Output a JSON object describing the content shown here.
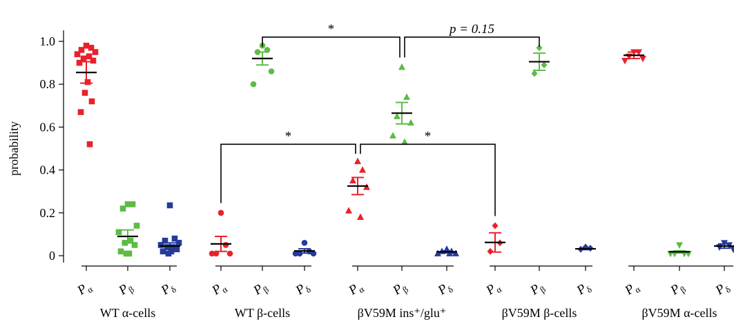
{
  "chart_data": {
    "type": "scatter",
    "ylabel": "probability",
    "ylim": [
      0,
      1.05
    ],
    "yticks": [
      "0",
      "0.2",
      "0.4",
      "0.6",
      "0.8",
      "1.0"
    ],
    "colors": {
      "alpha": "#e8212b",
      "beta": "#5dbb46",
      "delta": "#243b9a"
    },
    "groups": [
      {
        "label": "WT α-cells",
        "marker": "square",
        "categories": [
          {
            "name": "P",
            "sub": "α",
            "color": "alpha",
            "mean": 0.855,
            "sem": 0.05,
            "points": [
              0.98,
              0.97,
              0.96,
              0.95,
              0.94,
              0.93,
              0.92,
              0.91,
              0.9,
              0.81,
              0.76,
              0.72,
              0.67,
              0.52
            ]
          },
          {
            "name": "P",
            "sub": "β",
            "color": "beta",
            "mean": 0.09,
            "sem": 0.03,
            "points": [
              0.24,
              0.24,
              0.22,
              0.14,
              0.11,
              0.07,
              0.06,
              0.05,
              0.02,
              0.01,
              0.01
            ]
          },
          {
            "name": "P",
            "sub": "δ",
            "color": "delta",
            "mean": 0.045,
            "sem": 0.015,
            "points": [
              0.235,
              0.08,
              0.07,
              0.06,
              0.05,
              0.04,
              0.04,
              0.03,
              0.02,
              0.02,
              0.01
            ]
          }
        ]
      },
      {
        "label": "WT β-cells",
        "marker": "circle",
        "categories": [
          {
            "name": "P",
            "sub": "α",
            "color": "alpha",
            "mean": 0.055,
            "sem": 0.035,
            "points": [
              0.2,
              0.05,
              0.01,
              0.01,
              0.01
            ]
          },
          {
            "name": "P",
            "sub": "β",
            "color": "beta",
            "mean": 0.92,
            "sem": 0.03,
            "points": [
              0.98,
              0.96,
              0.95,
              0.86,
              0.8
            ]
          },
          {
            "name": "P",
            "sub": "δ",
            "color": "delta",
            "mean": 0.022,
            "sem": 0.01,
            "points": [
              0.06,
              0.02,
              0.01,
              0.01,
              0.01
            ]
          }
        ]
      },
      {
        "label": "βV59M ins⁺/glu⁺",
        "marker": "triangle-up",
        "categories": [
          {
            "name": "P",
            "sub": "α",
            "color": "alpha",
            "mean": 0.325,
            "sem": 0.04,
            "points": [
              0.44,
              0.4,
              0.35,
              0.32,
              0.21,
              0.18
            ]
          },
          {
            "name": "P",
            "sub": "β",
            "color": "beta",
            "mean": 0.665,
            "sem": 0.05,
            "points": [
              0.88,
              0.74,
              0.65,
              0.62,
              0.56,
              0.53
            ]
          },
          {
            "name": "P",
            "sub": "δ",
            "color": "delta",
            "mean": 0.018,
            "sem": 0.005,
            "points": [
              0.03,
              0.02,
              0.02,
              0.01,
              0.01,
              0.01
            ]
          }
        ]
      },
      {
        "label": "βV59M β-cells",
        "marker": "diamond",
        "categories": [
          {
            "name": "P",
            "sub": "α",
            "color": "alpha",
            "mean": 0.062,
            "sem": 0.045,
            "points": [
              0.14,
              0.06,
              0.02
            ]
          },
          {
            "name": "P",
            "sub": "β",
            "color": "beta",
            "mean": 0.905,
            "sem": 0.04,
            "points": [
              0.97,
              0.89,
              0.85
            ]
          },
          {
            "name": "P",
            "sub": "δ",
            "color": "delta",
            "mean": 0.032,
            "sem": 0.004,
            "points": [
              0.04,
              0.035,
              0.03
            ]
          }
        ]
      },
      {
        "label": "βV59M α-cells",
        "marker": "triangle-down",
        "categories": [
          {
            "name": "P",
            "sub": "α",
            "color": "alpha",
            "mean": 0.935,
            "sem": 0.015,
            "points": [
              0.95,
              0.95,
              0.93,
              0.92,
              0.91
            ]
          },
          {
            "name": "P",
            "sub": "β",
            "color": "beta",
            "mean": 0.018,
            "sem": 0.005,
            "points": [
              0.05,
              0.01,
              0.01,
              0.01,
              0.01
            ]
          },
          {
            "name": "P",
            "sub": "δ",
            "color": "delta",
            "mean": 0.045,
            "sem": 0.01,
            "points": [
              0.06,
              0.05,
              0.04,
              0.03
            ]
          }
        ]
      }
    ],
    "annotations": [
      {
        "text": "*",
        "from": [
          1,
          1
        ],
        "to": [
          2,
          1
        ],
        "level": 1.02
      },
      {
        "text": "p = 0.15",
        "from": [
          2,
          1
        ],
        "to": [
          3,
          1
        ],
        "level": 1.02
      },
      {
        "text": "*",
        "from": [
          1,
          0
        ],
        "to": [
          2,
          0
        ],
        "level": 0.52
      },
      {
        "text": "*",
        "from": [
          2,
          0
        ],
        "to": [
          3,
          0
        ],
        "level": 0.52
      }
    ]
  }
}
